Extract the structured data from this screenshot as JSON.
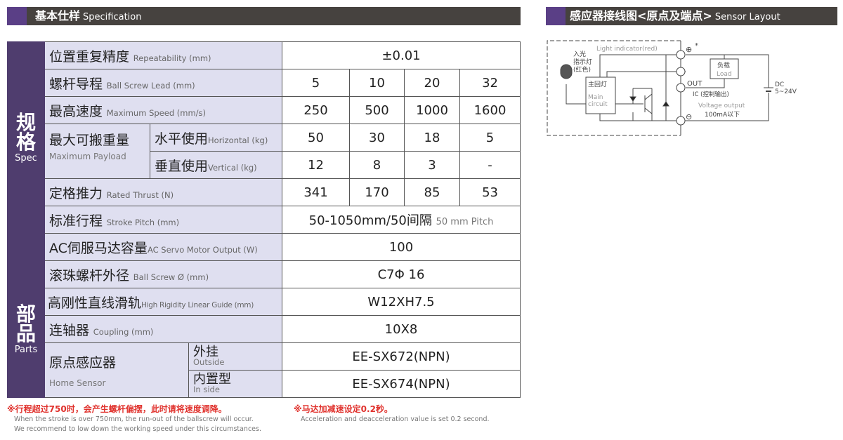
{
  "spec_header": {
    "zh": "基本仕样",
    "en": "Specification"
  },
  "sensor_header": {
    "zh": "感应器接线图<原点及端点>",
    "en": "Sensor Layout"
  },
  "colors": {
    "header_bg": "#46423f",
    "accent_purple": "#5a3f86",
    "side_bg": "#4f3d6e",
    "label_bg": "#dfdff0",
    "note_red": "#e0322d"
  },
  "spec_section": {
    "zh": "规格",
    "en": "Spec"
  },
  "parts_section": {
    "zh": "部品",
    "en": "Parts"
  },
  "rows": {
    "repeatability": {
      "zh": "位置重复精度",
      "en": "Repeatability (mm)",
      "value": "±0.01"
    },
    "lead": {
      "zh": "螺杆导程",
      "en": "Ball Screw Lead (mm)",
      "values": [
        "5",
        "10",
        "20",
        "32"
      ]
    },
    "speed": {
      "zh": "最高速度",
      "en": "Maximum Speed (mm/s)",
      "values": [
        "250",
        "500",
        "1000",
        "1600"
      ]
    },
    "payload": {
      "zh": "最大可搬重量",
      "en": "Maximum Payload",
      "horizontal": {
        "zh": "水平使用",
        "en": "Horizontal (kg)",
        "values": [
          "50",
          "30",
          "18",
          "5"
        ]
      },
      "vertical": {
        "zh": "垂直使用",
        "en": "Vertical (kg)",
        "values": [
          "12",
          "8",
          "3",
          "-"
        ]
      }
    },
    "thrust": {
      "zh": "定格推力",
      "en": "Rated Thrust (N)",
      "values": [
        "341",
        "170",
        "85",
        "53"
      ]
    },
    "stroke": {
      "zh": "标准行程",
      "en": "Stroke Pitch (mm)",
      "value": "50-1050mm/50间隔",
      "value_en": "50 mm Pitch"
    },
    "motor": {
      "zh": "AC伺服马达容量",
      "en": "AC Servo Motor Output (W)",
      "value": "100"
    },
    "screw_dia": {
      "zh": "滚珠螺杆外径",
      "en": "Ball Screw Ø (mm)",
      "value": "C7Φ 16"
    },
    "guide": {
      "zh": "高刚性直线滑轨",
      "en": "High Rigidity Linear Guide (mm)",
      "value": "W12XH7.5"
    },
    "coupling": {
      "zh": "连轴器",
      "en": "Coupling (mm)",
      "value": "10X8"
    },
    "home_sensor": {
      "zh": "原点感应器",
      "en": "Home Sensor",
      "outside": {
        "zh": "外挂",
        "en": "Outside",
        "value": "EE-SX672(NPN)"
      },
      "inside": {
        "zh": "内置型",
        "en": "In side",
        "value": "EE-SX674(NPN)"
      }
    }
  },
  "notes": {
    "left_zh": "※行程超过750时，会产生螺杆偏摆，此时请将速度调降。",
    "left_en1": "When the stroke is over 750mm, the run-out of the ballscrew will occur.",
    "left_en2": "We recommend to low down the working speed under this circumstances.",
    "right_zh": "※马达加减速设定0.2秒。",
    "right_en": "Acceleration and deacceleration value is set 0.2 second."
  },
  "diagram": {
    "light_indicator": "Light indicator(red)",
    "led_zh1": "入光",
    "led_zh2": "指示灯",
    "led_zh3": "(红色)",
    "main_zh": "主回灯",
    "main_en1": "Main",
    "main_en2": "circuit",
    "load_zh": "负载",
    "load_en": "Load",
    "out": "OUT",
    "ic": "IC (控制输出)",
    "voltage_output": "Voltage output",
    "current": "100mA以下",
    "dc": "DC",
    "dc_range": "5~24V",
    "plus": "⊕",
    "minus": "⊖",
    "asterisk": "*"
  }
}
